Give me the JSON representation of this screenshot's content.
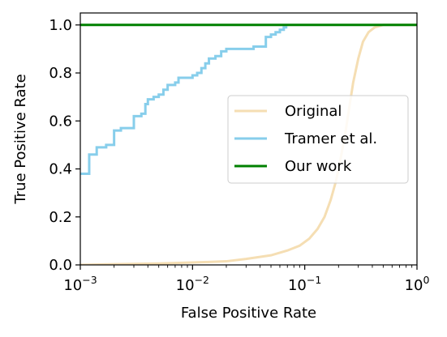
{
  "chart_data": {
    "type": "line",
    "title": "",
    "xlabel": "False Positive Rate",
    "ylabel": "True Positive Rate",
    "xscale": "log",
    "xlim": [
      0.001,
      1
    ],
    "ylim": [
      0.0,
      1.05
    ],
    "grid": false,
    "legend_position": "center-right",
    "x_ticks": [
      {
        "value": 0.001,
        "base": "10",
        "exp": "−3"
      },
      {
        "value": 0.01,
        "base": "10",
        "exp": "−2"
      },
      {
        "value": 0.1,
        "base": "10",
        "exp": "−1"
      },
      {
        "value": 1,
        "base": "10",
        "exp": "0"
      }
    ],
    "y_ticks": [
      {
        "value": 0.0,
        "label": "0.0"
      },
      {
        "value": 0.2,
        "label": "0.2"
      },
      {
        "value": 0.4,
        "label": "0.4"
      },
      {
        "value": 0.6,
        "label": "0.6"
      },
      {
        "value": 0.8,
        "label": "0.8"
      },
      {
        "value": 1.0,
        "label": "1.0"
      }
    ],
    "series": [
      {
        "name": "Original",
        "color": "#f5deb3",
        "step": false,
        "points": [
          [
            0.001,
            0.0
          ],
          [
            0.002,
            0.003
          ],
          [
            0.005,
            0.006
          ],
          [
            0.01,
            0.01
          ],
          [
            0.02,
            0.015
          ],
          [
            0.03,
            0.025
          ],
          [
            0.05,
            0.04
          ],
          [
            0.07,
            0.06
          ],
          [
            0.09,
            0.08
          ],
          [
            0.11,
            0.11
          ],
          [
            0.13,
            0.15
          ],
          [
            0.15,
            0.2
          ],
          [
            0.17,
            0.27
          ],
          [
            0.19,
            0.35
          ],
          [
            0.21,
            0.45
          ],
          [
            0.23,
            0.55
          ],
          [
            0.25,
            0.66
          ],
          [
            0.27,
            0.76
          ],
          [
            0.3,
            0.86
          ],
          [
            0.33,
            0.93
          ],
          [
            0.37,
            0.97
          ],
          [
            0.42,
            0.99
          ],
          [
            0.5,
            1.0
          ],
          [
            1.0,
            1.0
          ]
        ]
      },
      {
        "name": "Tramer et al.",
        "color": "#87ceeb",
        "step": true,
        "points": [
          [
            0.001,
            0.38
          ],
          [
            0.0012,
            0.46
          ],
          [
            0.0014,
            0.49
          ],
          [
            0.0017,
            0.5
          ],
          [
            0.002,
            0.56
          ],
          [
            0.0023,
            0.57
          ],
          [
            0.0027,
            0.57
          ],
          [
            0.003,
            0.62
          ],
          [
            0.0035,
            0.63
          ],
          [
            0.0038,
            0.67
          ],
          [
            0.004,
            0.69
          ],
          [
            0.0045,
            0.7
          ],
          [
            0.005,
            0.71
          ],
          [
            0.0055,
            0.73
          ],
          [
            0.006,
            0.75
          ],
          [
            0.007,
            0.76
          ],
          [
            0.0075,
            0.78
          ],
          [
            0.009,
            0.78
          ],
          [
            0.01,
            0.79
          ],
          [
            0.011,
            0.8
          ],
          [
            0.012,
            0.82
          ],
          [
            0.013,
            0.84
          ],
          [
            0.014,
            0.86
          ],
          [
            0.016,
            0.87
          ],
          [
            0.018,
            0.89
          ],
          [
            0.02,
            0.9
          ],
          [
            0.03,
            0.9
          ],
          [
            0.035,
            0.91
          ],
          [
            0.04,
            0.91
          ],
          [
            0.045,
            0.95
          ],
          [
            0.05,
            0.96
          ],
          [
            0.055,
            0.97
          ],
          [
            0.06,
            0.98
          ],
          [
            0.065,
            0.99
          ],
          [
            0.07,
            0.99
          ]
        ]
      },
      {
        "name": "Our work",
        "color": "#008000",
        "step": false,
        "points": [
          [
            0.001,
            1.0
          ],
          [
            1.0,
            1.0
          ]
        ]
      }
    ]
  }
}
